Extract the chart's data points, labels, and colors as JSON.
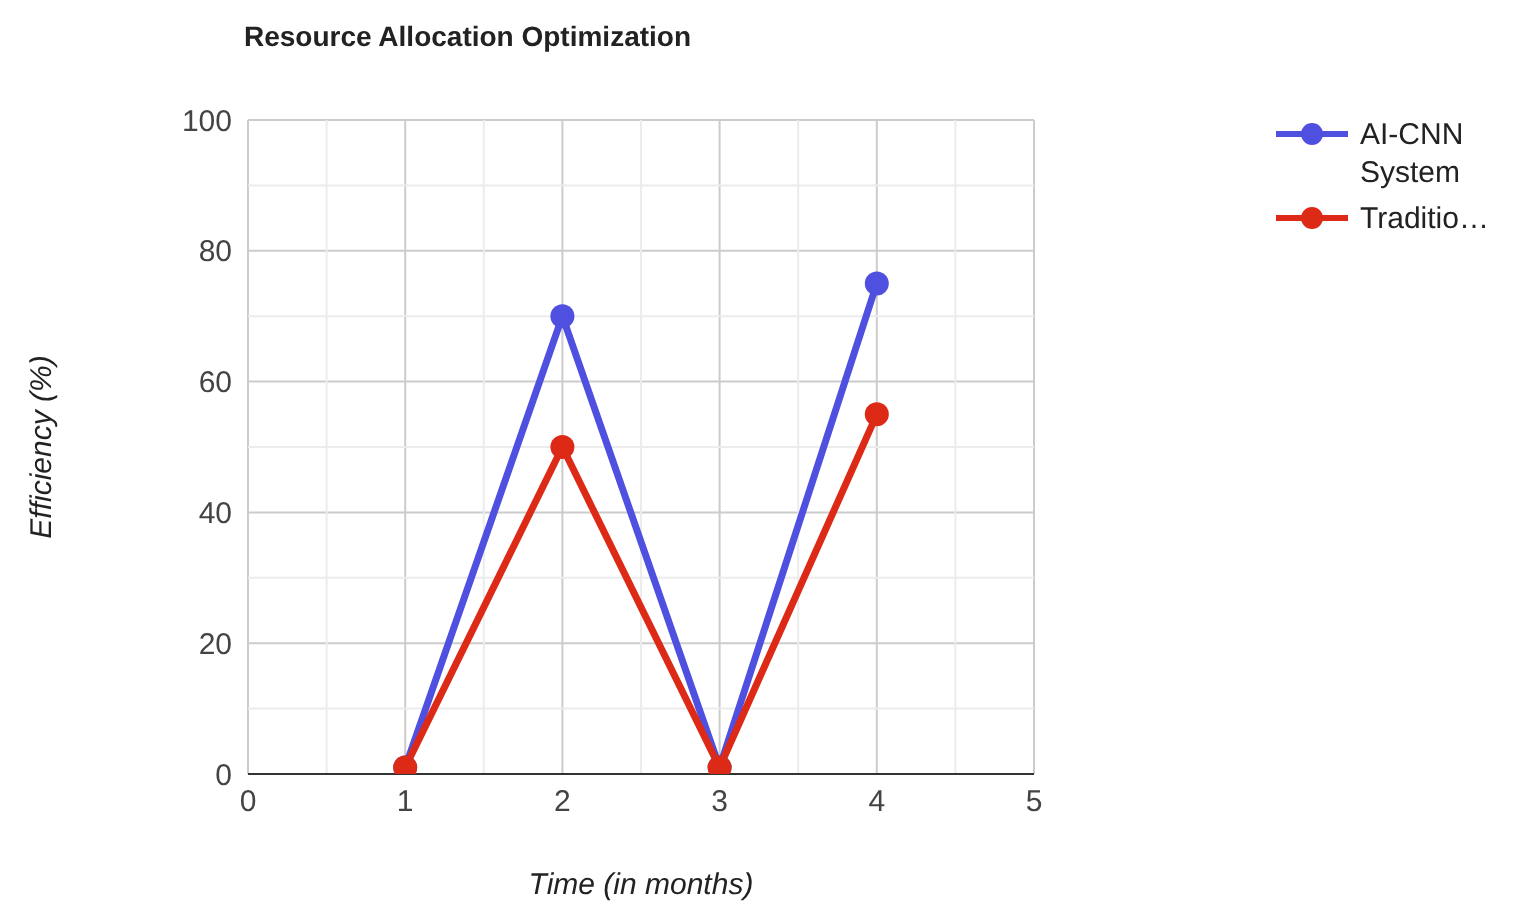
{
  "chart_data": {
    "type": "line",
    "title": "Resource Allocation Optimization",
    "xlabel": "Time (in months)",
    "ylabel": "Efficiency (%)",
    "x": [
      1,
      2,
      3,
      4
    ],
    "series": [
      {
        "name": "AI-CNN System",
        "color": "#4f4fe0",
        "values": [
          1,
          70,
          1,
          75
        ]
      },
      {
        "name": "Traditio…",
        "color": "#dd2a17",
        "values": [
          1,
          50,
          1,
          55
        ]
      }
    ],
    "xlim": [
      0,
      5
    ],
    "xticks": [
      0,
      1,
      2,
      3,
      4,
      5
    ],
    "ylim": [
      0,
      100
    ],
    "yticks": [
      0,
      20,
      40,
      60,
      80,
      100
    ],
    "grid": true,
    "legend": "top right",
    "marker": "circle",
    "line_style": "solid"
  }
}
